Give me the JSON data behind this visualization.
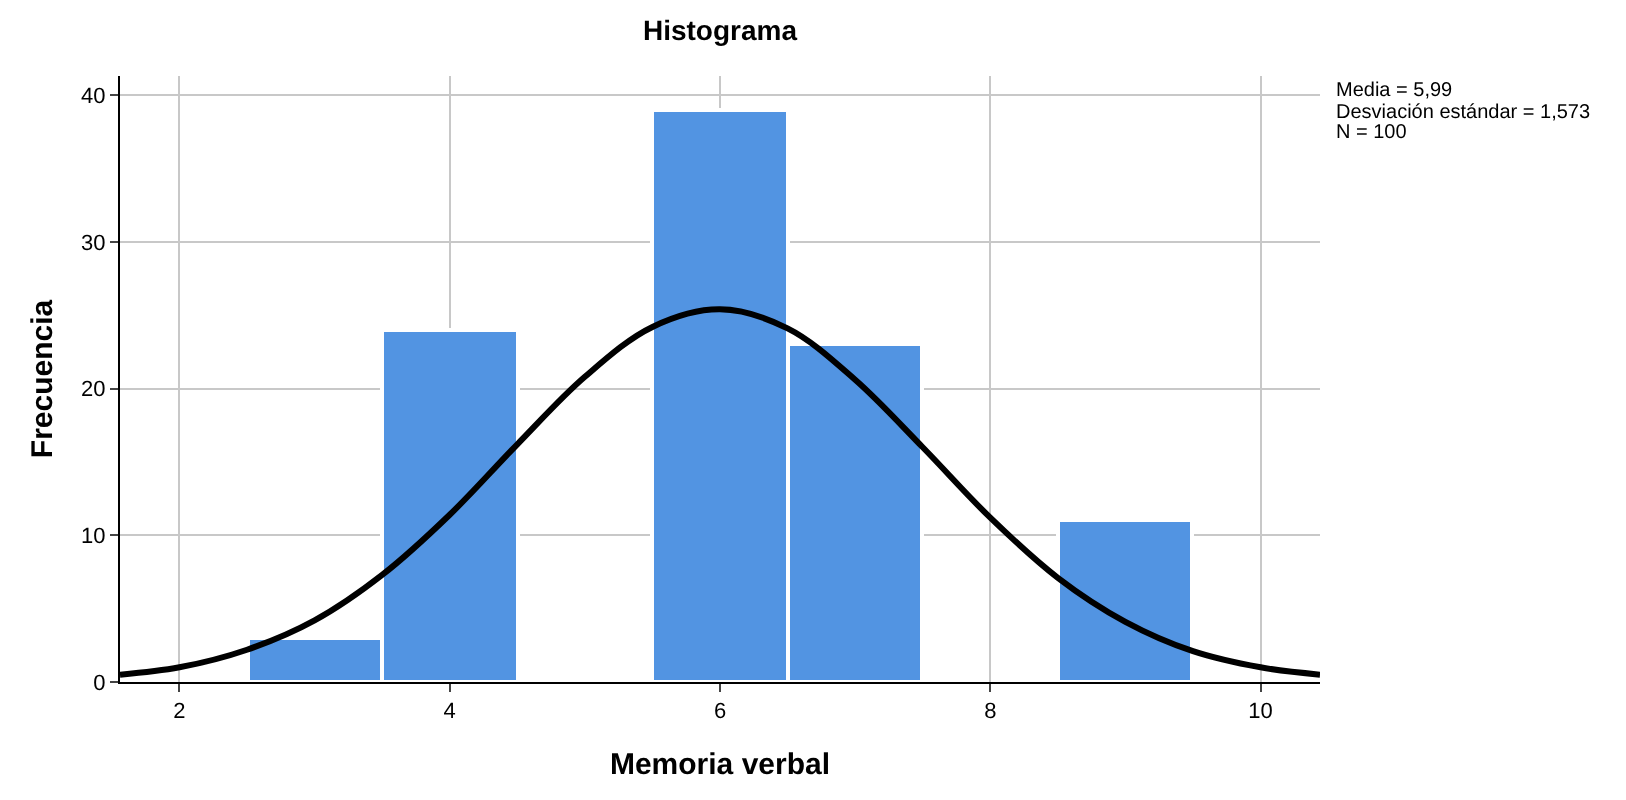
{
  "chart_data": {
    "type": "histogram",
    "title": "Histograma",
    "xlabel": "Memoria verbal",
    "ylabel": "Frecuencia",
    "bins": [
      2.5,
      3.5,
      4.5,
      5.5,
      6.5,
      7.5,
      8.5,
      9.5
    ],
    "values": [
      3,
      24,
      0,
      39,
      23,
      0,
      11
    ],
    "color": "#5294e2",
    "series": [
      {
        "type": "line",
        "color": "#000000",
        "x": [
          1.56,
          2,
          2.5,
          3,
          3.5,
          4,
          4.5,
          5,
          5.5,
          6,
          6.5,
          7,
          7.5,
          8,
          8.5,
          9,
          9.5,
          10,
          10.44
        ],
        "values": [
          0.5,
          1.0,
          2.2,
          4.2,
          7.3,
          11.4,
          16.2,
          20.8,
          24.2,
          25.4,
          24.1,
          20.6,
          16.0,
          11.2,
          7.1,
          4.1,
          2.1,
          1.0,
          0.5
        ]
      }
    ],
    "xlim": [
      1.56,
      10.44
    ],
    "xticks": [
      2,
      4,
      6,
      8,
      10
    ],
    "ylim": [
      0,
      41.3
    ],
    "yticks": [
      0,
      10,
      20,
      30,
      40
    ],
    "grid": true,
    "annotations": [
      "Media = 5,99",
      "Desviación estándar = 1,573",
      "N = 100"
    ]
  }
}
